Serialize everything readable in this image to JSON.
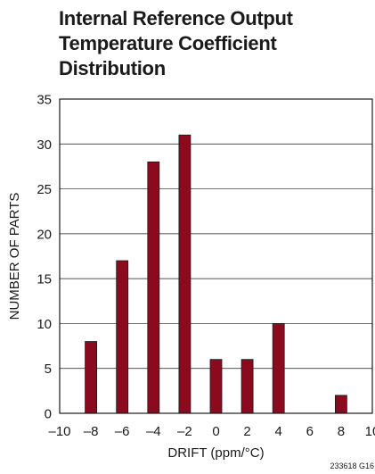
{
  "chart_data": {
    "type": "bar",
    "title_lines": [
      "Internal Reference Output",
      "Temperature Coefficient",
      "Distribution"
    ],
    "xlabel": "DRIFT (ppm/°C)",
    "ylabel": "NUMBER OF PARTS",
    "xlim": [
      -10,
      10
    ],
    "ylim": [
      0,
      35
    ],
    "x_ticks": [
      -10,
      -8,
      -6,
      -4,
      -2,
      0,
      2,
      4,
      6,
      8,
      10
    ],
    "x_tick_labels": [
      "–10",
      "–8",
      "–6",
      "–4",
      "–2",
      "0",
      "2",
      "4",
      "6",
      "8",
      "10"
    ],
    "y_ticks": [
      0,
      5,
      10,
      15,
      20,
      25,
      30,
      35
    ],
    "y_tick_labels": [
      "0",
      "5",
      "10",
      "15",
      "20",
      "25",
      "30",
      "35"
    ],
    "grid": "horizontal",
    "bar_color": "#8b0a1e",
    "x": [
      -8,
      -6,
      -4,
      -2,
      0,
      2,
      4,
      8
    ],
    "values": [
      8,
      17,
      28,
      31,
      6,
      6,
      10,
      2
    ],
    "figure_id": "233618 G16"
  }
}
